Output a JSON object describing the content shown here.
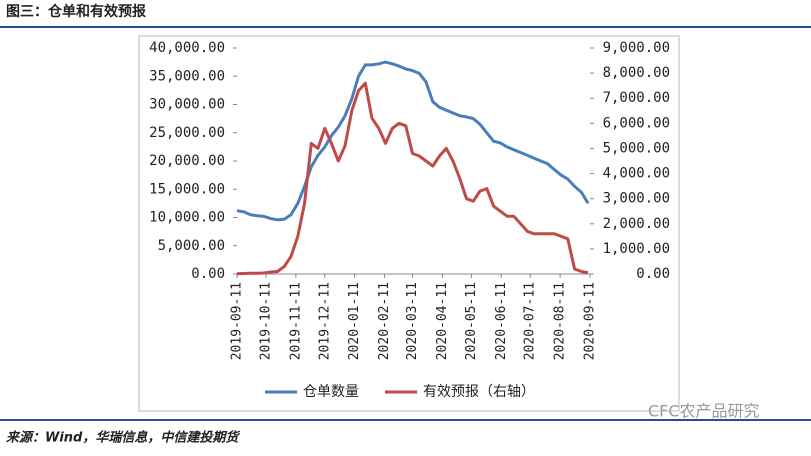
{
  "header": "图三：仓单和有效预报",
  "source": "来源：Wind，华瑞信息，中信建投期货",
  "watermark": "CFC农产品研究",
  "chart_data": {
    "type": "line",
    "x": [
      "2019-09-11",
      "2019-09-18",
      "2019-09-25",
      "2019-10-02",
      "2019-10-09",
      "2019-10-16",
      "2019-10-23",
      "2019-10-30",
      "2019-11-06",
      "2019-11-13",
      "2019-11-20",
      "2019-11-27",
      "2019-12-04",
      "2019-12-11",
      "2019-12-18",
      "2019-12-25",
      "2020-01-01",
      "2020-01-08",
      "2020-01-15",
      "2020-01-22",
      "2020-01-29",
      "2020-02-05",
      "2020-02-12",
      "2020-02-19",
      "2020-02-26",
      "2020-03-04",
      "2020-03-11",
      "2020-03-18",
      "2020-03-25",
      "2020-04-01",
      "2020-04-08",
      "2020-04-15",
      "2020-04-22",
      "2020-04-29",
      "2020-05-06",
      "2020-05-13",
      "2020-05-20",
      "2020-05-27",
      "2020-06-03",
      "2020-06-10",
      "2020-06-17",
      "2020-06-24",
      "2020-07-01",
      "2020-07-08",
      "2020-07-15",
      "2020-07-22",
      "2020-07-29",
      "2020-08-05",
      "2020-08-12",
      "2020-08-19",
      "2020-08-26",
      "2020-09-02",
      "2020-09-09"
    ],
    "series": [
      {
        "name": "仓单数量",
        "color": "#4a7ebb",
        "values": [
          11200,
          11000,
          10500,
          10300,
          10200,
          9800,
          9600,
          9700,
          10500,
          12500,
          15500,
          19000,
          21000,
          22500,
          24500,
          26000,
          28000,
          31000,
          35000,
          37000,
          37000,
          37200,
          37500,
          37200,
          36800,
          36300,
          36000,
          35500,
          34000,
          30500,
          29500,
          29000,
          28500,
          28000,
          27800,
          27500,
          26500,
          25000,
          23500,
          23200,
          22500,
          22000,
          21500,
          21000,
          20500,
          20000,
          19500,
          18500,
          17500,
          16800,
          15500,
          14500,
          12500
        ]
      },
      {
        "name": "有效预报（右轴）",
        "color": "#be4b48",
        "axis": "y2",
        "values": [
          10,
          20,
          30,
          30,
          40,
          80,
          100,
          300,
          700,
          1500,
          2800,
          5200,
          5000,
          5800,
          5200,
          4500,
          5100,
          6500,
          7300,
          7600,
          6200,
          5800,
          5200,
          5800,
          6000,
          5900,
          4800,
          4700,
          4500,
          4300,
          4700,
          5000,
          4500,
          3800,
          3000,
          2900,
          3300,
          3400,
          2700,
          2500,
          2300,
          2300,
          2000,
          1700,
          1600,
          1600,
          1600,
          1600,
          1500,
          1400,
          200,
          100,
          50
        ]
      }
    ],
    "xlim": [
      "2019-09-11",
      "2020-09-11"
    ],
    "xticks": [
      "2019-09-11",
      "2019-10-11",
      "2019-11-11",
      "2019-12-11",
      "2020-01-11",
      "2020-02-11",
      "2020-03-11",
      "2020-04-11",
      "2020-05-11",
      "2020-06-11",
      "2020-07-11",
      "2020-08-11",
      "2020-09-11"
    ],
    "ylim": [
      0,
      40000
    ],
    "yticks": [
      {
        "value": 0,
        "label": "0.00"
      },
      {
        "value": 5000,
        "label": "5,000.00"
      },
      {
        "value": 10000,
        "label": "10,000.00"
      },
      {
        "value": 15000,
        "label": "15,000.00"
      },
      {
        "value": 20000,
        "label": "20,000.00"
      },
      {
        "value": 25000,
        "label": "25,000.00"
      },
      {
        "value": 30000,
        "label": "30,000.00"
      },
      {
        "value": 35000,
        "label": "35,000.00"
      },
      {
        "value": 40000,
        "label": "40,000.00"
      }
    ],
    "y2lim": [
      0,
      9000
    ],
    "y2ticks": [
      {
        "value": 0,
        "label": "0.00"
      },
      {
        "value": 1000,
        "label": "1,000.00"
      },
      {
        "value": 2000,
        "label": "2,000.00"
      },
      {
        "value": 3000,
        "label": "3,000.00"
      },
      {
        "value": 4000,
        "label": "4,000.00"
      },
      {
        "value": 5000,
        "label": "5,000.00"
      },
      {
        "value": 6000,
        "label": "6,000.00"
      },
      {
        "value": 7000,
        "label": "7,000.00"
      },
      {
        "value": 8000,
        "label": "8,000.00"
      },
      {
        "value": 9000,
        "label": "9,000.00"
      }
    ],
    "legend": "bottom"
  }
}
